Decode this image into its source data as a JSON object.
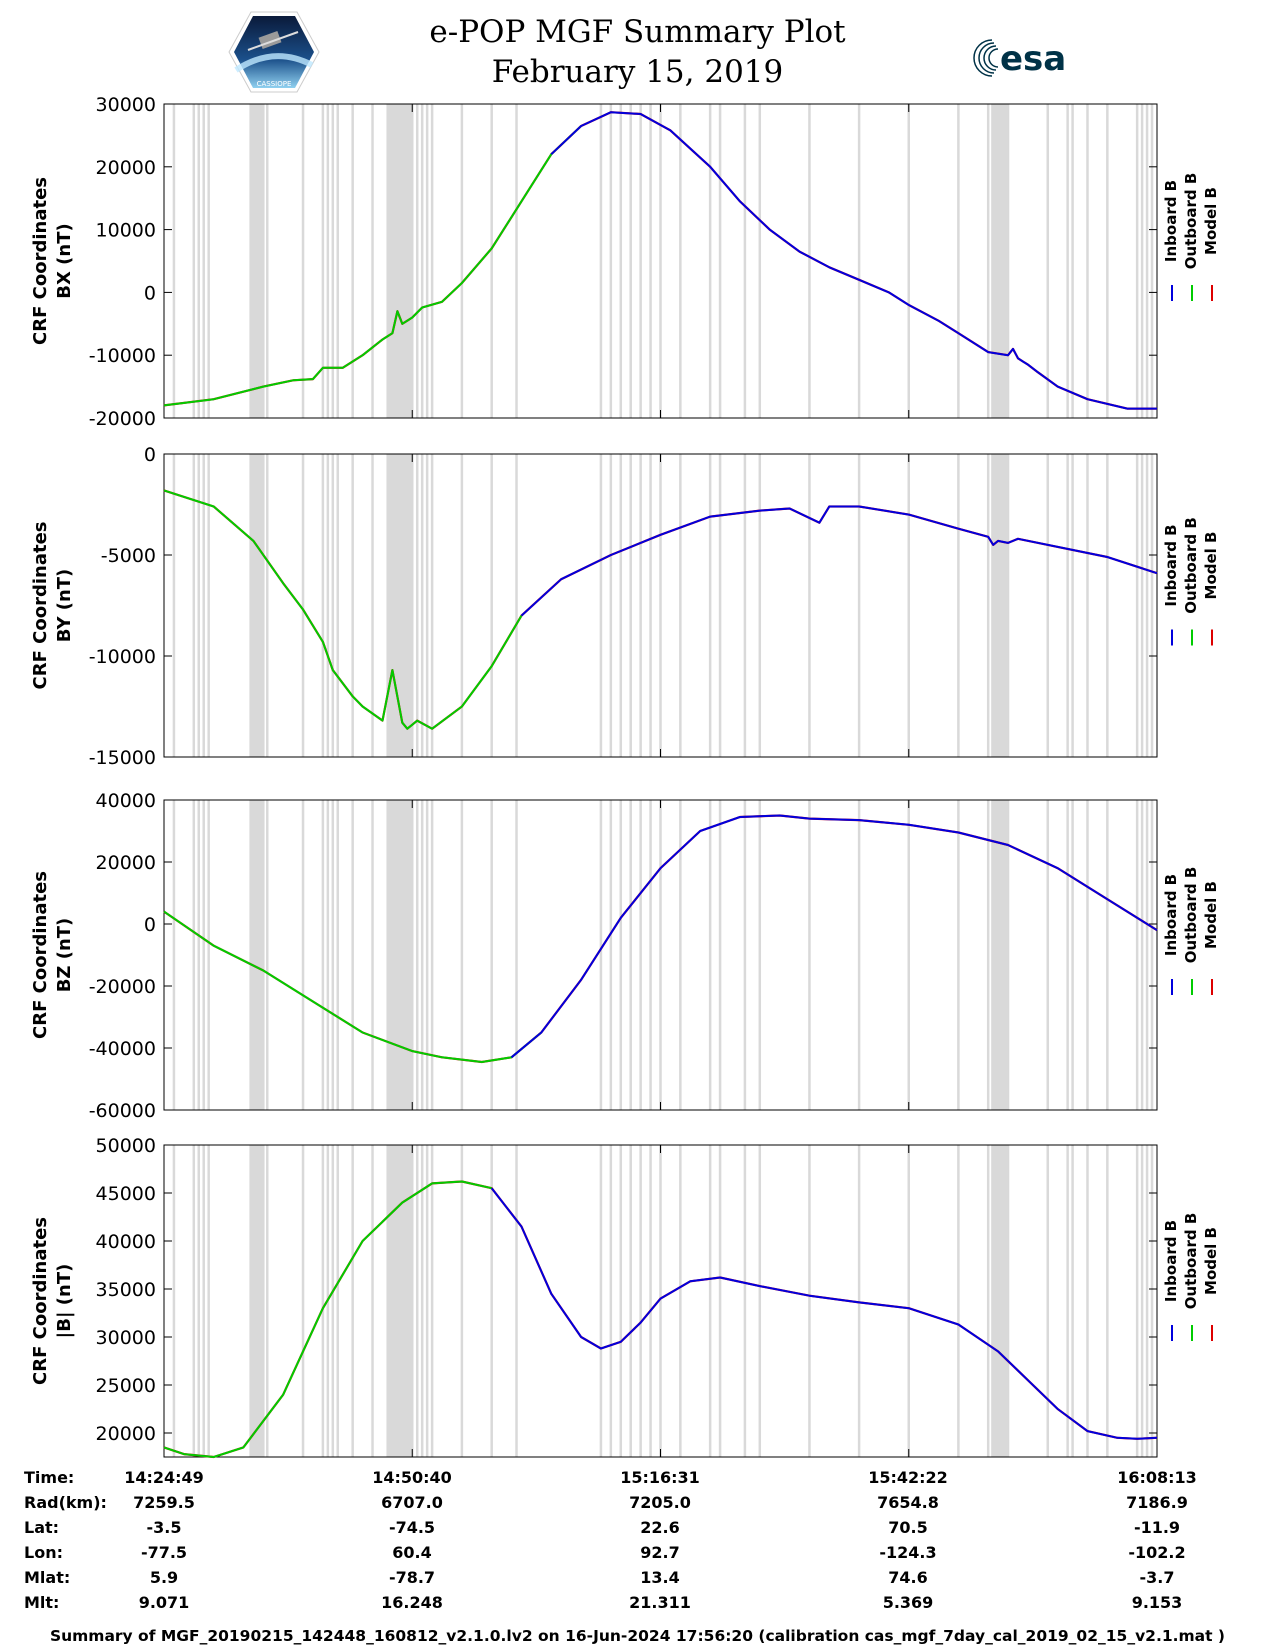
{
  "header": {
    "title": "e-POP MGF Summary Plot",
    "date": "February 15, 2019",
    "logo_left": "CASSIOPE",
    "logo_right": "esa"
  },
  "colors": {
    "inboard": "#0000dd",
    "outboard": "#00cc00",
    "model": "#dd0000",
    "gap": "#d9d9d9"
  },
  "legend": {
    "inboard": "Inboard B",
    "outboard": "Outboard B",
    "model": "Model B"
  },
  "x_ticks": [
    "14:24:49",
    "14:50:40",
    "15:16:31",
    "15:42:22",
    "16:08:13"
  ],
  "chart_data": [
    {
      "type": "line",
      "ylabel_line1": "CRF Coordinates",
      "ylabel_line2": "BX (nT)",
      "ylim": [
        -20000,
        30000
      ],
      "yticks": [
        30000,
        20000,
        10000,
        0,
        -10000,
        -20000
      ],
      "ytick_labels": [
        "30000",
        "20000",
        "10000",
        "0",
        "-10000",
        "-20000"
      ],
      "switch_x": 0.4,
      "x": [
        0,
        0.05,
        0.1,
        0.13,
        0.15,
        0.16,
        0.18,
        0.2,
        0.22,
        0.23,
        0.235,
        0.24,
        0.245,
        0.25,
        0.26,
        0.28,
        0.3,
        0.33,
        0.36,
        0.39,
        0.42,
        0.45,
        0.48,
        0.51,
        0.55,
        0.58,
        0.61,
        0.64,
        0.67,
        0.7,
        0.73,
        0.75,
        0.78,
        0.8,
        0.83,
        0.85,
        0.855,
        0.86,
        0.865,
        0.87,
        0.88,
        0.9,
        0.93,
        0.97,
        1.0
      ],
      "y": [
        -18000,
        -17000,
        -15000,
        -14000,
        -13800,
        -12000,
        -12000,
        -10000,
        -7500,
        -6500,
        -3000,
        -5000,
        -4500,
        -4000,
        -2400,
        -1500,
        1500,
        7000,
        14500,
        22000,
        26500,
        28700,
        28400,
        25800,
        20000,
        14500,
        10000,
        6500,
        4000,
        2000,
        0,
        -2000,
        -4500,
        -6500,
        -9500,
        -10000,
        -9000,
        -10500,
        -11000,
        -11500,
        -12700,
        -15000,
        -17000,
        -18500,
        -18500
      ]
    },
    {
      "type": "line",
      "ylabel_line1": "CRF Coordinates",
      "ylabel_line2": "BY (nT)",
      "ylim": [
        -15000,
        0
      ],
      "yticks": [
        0,
        -5000,
        -10000,
        -15000
      ],
      "ytick_labels": [
        "0",
        "-5000",
        "-10000",
        "-15000"
      ],
      "switch_x": 0.36,
      "x": [
        0,
        0.05,
        0.09,
        0.12,
        0.14,
        0.16,
        0.17,
        0.19,
        0.2,
        0.22,
        0.23,
        0.24,
        0.245,
        0.25,
        0.255,
        0.27,
        0.3,
        0.33,
        0.36,
        0.4,
        0.45,
        0.5,
        0.55,
        0.6,
        0.63,
        0.66,
        0.67,
        0.68,
        0.7,
        0.75,
        0.8,
        0.83,
        0.835,
        0.84,
        0.85,
        0.86,
        0.9,
        0.95,
        1.0
      ],
      "y": [
        -1800,
        -2600,
        -4300,
        -6400,
        -7700,
        -9300,
        -10700,
        -12000,
        -12500,
        -13200,
        -10700,
        -13300,
        -13600,
        -13400,
        -13200,
        -13600,
        -12500,
        -10500,
        -8000,
        -6200,
        -5000,
        -4000,
        -3100,
        -2800,
        -2700,
        -3400,
        -2600,
        -2600,
        -2600,
        -3000,
        -3700,
        -4100,
        -4500,
        -4300,
        -4400,
        -4200,
        -4600,
        -5100,
        -5900
      ]
    },
    {
      "type": "line",
      "ylabel_line1": "CRF Coordinates",
      "ylabel_line2": "BZ (nT)",
      "ylim": [
        -60000,
        40000
      ],
      "yticks": [
        40000,
        20000,
        0,
        -20000,
        -40000,
        -60000
      ],
      "ytick_labels": [
        "40000",
        "20000",
        "0",
        "-20000",
        "-40000",
        "-60000"
      ],
      "switch_x": 0.37,
      "x": [
        0,
        0.05,
        0.1,
        0.15,
        0.2,
        0.25,
        0.28,
        0.32,
        0.35,
        0.38,
        0.42,
        0.46,
        0.5,
        0.54,
        0.58,
        0.62,
        0.65,
        0.7,
        0.75,
        0.8,
        0.85,
        0.9,
        0.95,
        1.0
      ],
      "y": [
        4000,
        -7000,
        -15000,
        -25000,
        -35000,
        -41000,
        -43000,
        -44500,
        -43000,
        -35000,
        -18000,
        2000,
        18000,
        30000,
        34500,
        35000,
        34000,
        33500,
        32000,
        29500,
        25500,
        18000,
        8000,
        -2000
      ]
    },
    {
      "type": "line",
      "ylabel_line1": "CRF Coordinates",
      "ylabel_line2": "|B| (nT)",
      "ylim": [
        17500,
        50000
      ],
      "yticks": [
        50000,
        45000,
        40000,
        35000,
        30000,
        25000,
        20000
      ],
      "ytick_labels": [
        "50000",
        "45000",
        "40000",
        "35000",
        "30000",
        "25000",
        "20000"
      ],
      "switch_x": 0.33,
      "x": [
        0,
        0.02,
        0.05,
        0.08,
        0.12,
        0.16,
        0.2,
        0.24,
        0.27,
        0.3,
        0.33,
        0.36,
        0.39,
        0.42,
        0.44,
        0.46,
        0.48,
        0.5,
        0.53,
        0.56,
        0.6,
        0.65,
        0.7,
        0.75,
        0.8,
        0.84,
        0.87,
        0.9,
        0.93,
        0.96,
        0.98,
        1.0
      ],
      "y": [
        18500,
        17800,
        17500,
        18500,
        24000,
        33000,
        40000,
        44000,
        46000,
        46200,
        45500,
        41500,
        34500,
        30000,
        28800,
        29500,
        31500,
        34000,
        35800,
        36200,
        35300,
        34300,
        33600,
        33000,
        31300,
        28500,
        25500,
        22500,
        20200,
        19500,
        19400,
        19500
      ]
    }
  ],
  "gaps": [
    0.01,
    0.03,
    0.035,
    0.04,
    0.045,
    0.09,
    0.095,
    0.1,
    0.104,
    0.14,
    0.16,
    0.165,
    0.17,
    0.175,
    0.19,
    0.21,
    0.235,
    0.24,
    0.245,
    0.25,
    0.255,
    0.26,
    0.265,
    0.27,
    0.3,
    0.33,
    0.355,
    0.44,
    0.45,
    0.46,
    0.47,
    0.48,
    0.49,
    0.5,
    0.52,
    0.55,
    0.56,
    0.585,
    0.6,
    0.65,
    0.7,
    0.75,
    0.8,
    0.84,
    0.85,
    0.83,
    0.84,
    0.845,
    0.89,
    0.91,
    0.915,
    0.93,
    0.95,
    0.98,
    0.985,
    0.99,
    0.995
  ],
  "gap_blocks": [
    [
      0.086,
      0.1
    ],
    [
      0.224,
      0.25
    ],
    [
      0.833,
      0.85
    ]
  ],
  "footer": {
    "labels": [
      "Time:",
      "Rad(km):",
      "Lat:",
      "Lon:",
      "Mlat:",
      "Mlt:"
    ],
    "columns": [
      [
        "14:24:49",
        "7259.5",
        "-3.5",
        "-77.5",
        "5.9",
        "9.071"
      ],
      [
        "14:50:40",
        "6707.0",
        "-74.5",
        "60.4",
        "-78.7",
        "16.248"
      ],
      [
        "15:16:31",
        "7205.0",
        "22.6",
        "92.7",
        "13.4",
        "21.311"
      ],
      [
        "15:42:22",
        "7654.8",
        "70.5",
        "-124.3",
        "74.6",
        "5.369"
      ],
      [
        "16:08:13",
        "7186.9",
        "-11.9",
        "-102.2",
        "-3.7",
        "9.153"
      ]
    ],
    "note": "Summary of MGF_20190215_142448_160812_v2.1.0.lv2 on 16-Jun-2024 17:56:20 (calibration cas_mgf_7day_cal_2019_02_15_v2.1.mat )"
  }
}
